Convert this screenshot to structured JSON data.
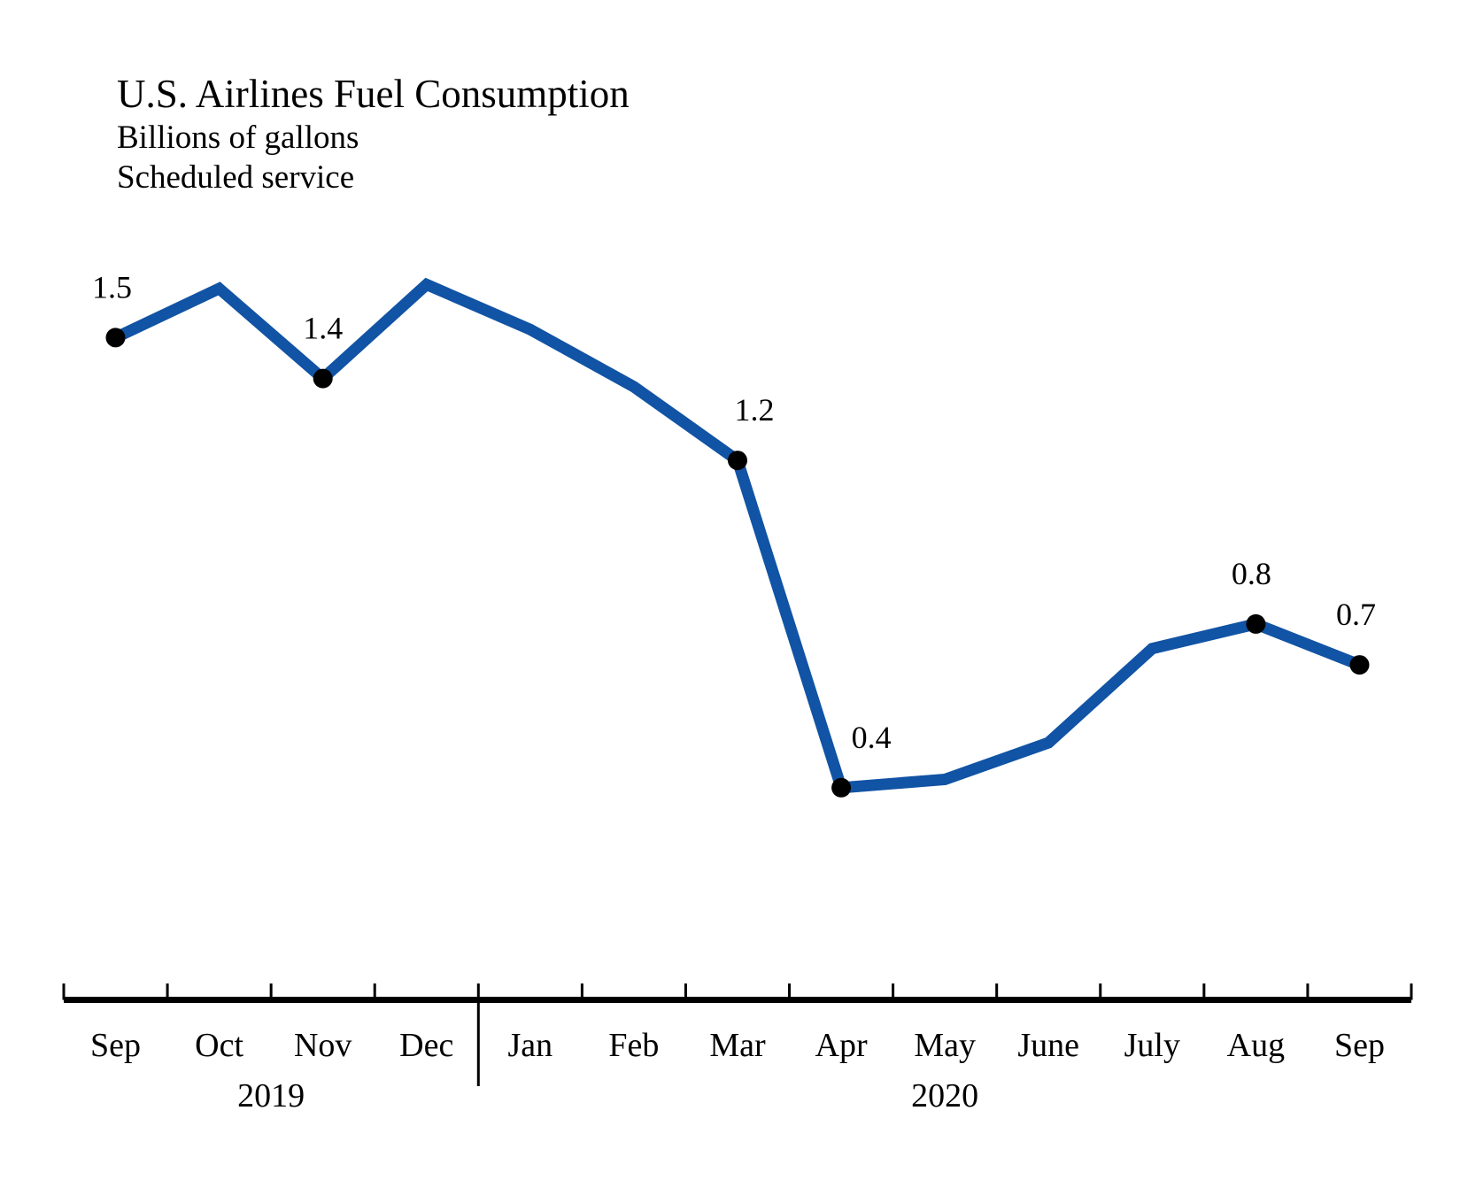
{
  "page": {
    "background": "#FFFFFF"
  },
  "chart_data": {
    "type": "line",
    "title": "U.S. Airlines Fuel Consumption",
    "subtitle_unit": "Billions of gallons",
    "subtitle_scope": "Scheduled service",
    "categories": [
      "Sep",
      "Oct",
      "Nov",
      "Dec",
      "Jan",
      "Feb",
      "Mar",
      "Apr",
      "May",
      "June",
      "July",
      "Aug",
      "Sep"
    ],
    "values": [
      1.5,
      1.62,
      1.4,
      1.63,
      1.52,
      1.38,
      1.2,
      0.4,
      0.42,
      0.51,
      0.74,
      0.8,
      0.7
    ],
    "point_labels": [
      "1.5",
      null,
      "1.4",
      null,
      null,
      null,
      "1.2",
      "0.4",
      null,
      null,
      null,
      "0.8",
      "0.7"
    ],
    "years": [
      {
        "label": "2019",
        "from_month_index": 0,
        "to_month_index": 3
      },
      {
        "label": "2020",
        "from_month_index": 4,
        "to_month_index": 12
      }
    ],
    "ylim": [
      0.3,
      1.7
    ],
    "xlabel": "",
    "ylabel": "",
    "grid": "off",
    "legend": "none",
    "line_color": "#1153A4",
    "marker_color": "#000000",
    "axis_color": "#000000"
  }
}
